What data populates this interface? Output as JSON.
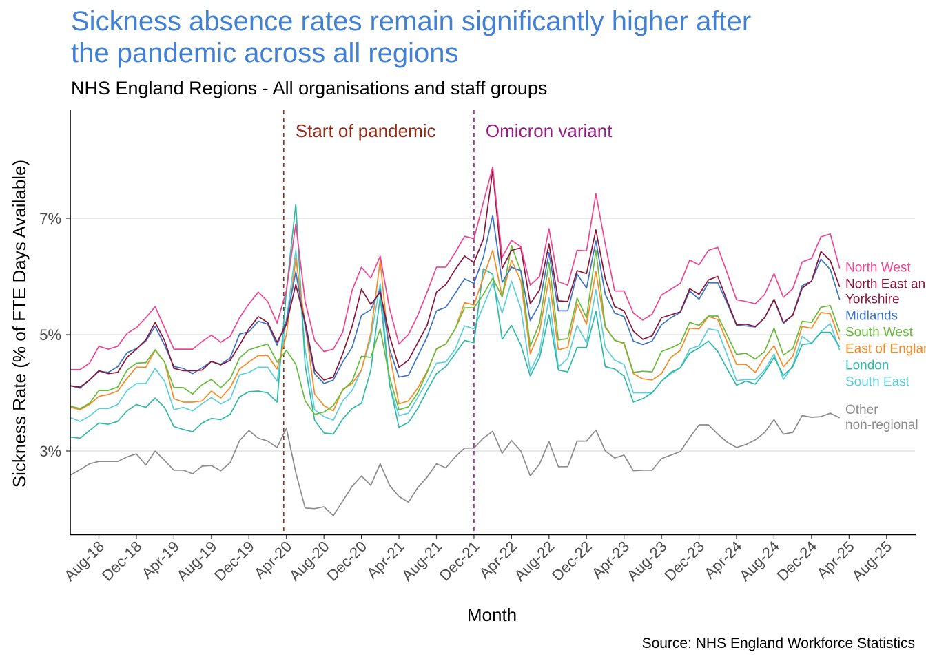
{
  "chart_data": {
    "type": "line",
    "title": "Sickness absence rates remain significantly higher after the pandemic across all regions",
    "subtitle": "NHS England Regions - All organisations and staff groups",
    "xlabel": "Month",
    "ylabel": "Sickness Rate (% of FTE Days Available)",
    "caption": "Source: NHS England Workforce Statistics",
    "title_color": "#4180D2",
    "ylim": [
      1.57,
      8.86
    ],
    "xlim": [
      "2018-05",
      "2025-11"
    ],
    "grid": "horizontal major lines",
    "y_ticks": [
      {
        "value": 3,
        "label": "3%"
      },
      {
        "value": 5,
        "label": "5%"
      },
      {
        "value": 7,
        "label": "7%"
      }
    ],
    "x_ticks": [
      {
        "date": "2018-08",
        "label": "Aug-18"
      },
      {
        "date": "2018-12",
        "label": "Dec-18"
      },
      {
        "date": "2019-04",
        "label": "Apr-19"
      },
      {
        "date": "2019-08",
        "label": "Aug-19"
      },
      {
        "date": "2019-12",
        "label": "Dec-19"
      },
      {
        "date": "2020-04",
        "label": "Apr-20"
      },
      {
        "date": "2020-08",
        "label": "Aug-20"
      },
      {
        "date": "2020-12",
        "label": "Dec-20"
      },
      {
        "date": "2021-04",
        "label": "Apr-21"
      },
      {
        "date": "2021-08",
        "label": "Aug-21"
      },
      {
        "date": "2021-12",
        "label": "Dec-21"
      },
      {
        "date": "2022-04",
        "label": "Apr-22"
      },
      {
        "date": "2022-08",
        "label": "Aug-22"
      },
      {
        "date": "2022-12",
        "label": "Dec-22"
      },
      {
        "date": "2023-04",
        "label": "Apr-23"
      },
      {
        "date": "2023-08",
        "label": "Aug-23"
      },
      {
        "date": "2023-12",
        "label": "Dec-23"
      },
      {
        "date": "2024-04",
        "label": "Apr-24"
      },
      {
        "date": "2024-08",
        "label": "Aug-24"
      },
      {
        "date": "2024-12",
        "label": "Dec-24"
      },
      {
        "date": "2025-04",
        "label": "Apr-25"
      },
      {
        "date": "2025-08",
        "label": "Aug-25"
      }
    ],
    "annotations": [
      {
        "label": "Start of pandemic",
        "date": "2020-03-23",
        "color": "#952B17",
        "style": "dashed vertical line"
      },
      {
        "label": "Omicron variant",
        "date": "2021-12-01",
        "color": "#9A1A86",
        "style": "dashed vertical line"
      }
    ],
    "x": [
      "2018-05",
      "2018-06",
      "2018-07",
      "2018-08",
      "2018-09",
      "2018-10",
      "2018-11",
      "2018-12",
      "2019-01",
      "2019-02",
      "2019-03",
      "2019-04",
      "2019-05",
      "2019-06",
      "2019-07",
      "2019-08",
      "2019-09",
      "2019-10",
      "2019-11",
      "2019-12",
      "2020-01",
      "2020-02",
      "2020-03",
      "2020-04",
      "2020-05",
      "2020-06",
      "2020-07",
      "2020-08",
      "2020-09",
      "2020-10",
      "2020-11",
      "2020-12",
      "2021-01",
      "2021-02",
      "2021-03",
      "2021-04",
      "2021-05",
      "2021-06",
      "2021-07",
      "2021-08",
      "2021-09",
      "2021-10",
      "2021-11",
      "2021-12",
      "2022-01",
      "2022-02",
      "2022-03",
      "2022-04",
      "2022-05",
      "2022-06",
      "2022-07",
      "2022-08",
      "2022-09",
      "2022-10",
      "2022-11",
      "2022-12",
      "2023-01",
      "2023-02",
      "2023-03",
      "2023-04",
      "2023-05",
      "2023-06",
      "2023-07",
      "2023-08",
      "2023-09",
      "2023-10",
      "2023-11",
      "2023-12",
      "2024-01",
      "2024-02",
      "2024-03",
      "2024-04",
      "2024-05",
      "2024-06",
      "2024-07",
      "2024-08",
      "2024-09",
      "2024-10",
      "2024-11",
      "2024-12",
      "2025-01",
      "2025-02",
      "2025-03"
    ],
    "series": [
      {
        "name": "North West",
        "color": "#EE4591",
        "values": [
          4.4,
          4.4,
          4.51,
          4.8,
          4.75,
          4.8,
          5.02,
          5.12,
          5.29,
          5.48,
          5.12,
          4.75,
          4.75,
          4.75,
          4.88,
          4.99,
          4.87,
          4.97,
          5.29,
          5.53,
          5.73,
          5.57,
          5.2,
          5.76,
          6.9,
          5.57,
          4.9,
          4.71,
          4.75,
          5.04,
          5.76,
          6.16,
          5.97,
          6.35,
          5.45,
          4.84,
          5.0,
          5.33,
          5.73,
          6.16,
          6.16,
          6.41,
          6.69,
          6.65,
          7.27,
          7.88,
          6.33,
          6.62,
          6.51,
          5.85,
          6.0,
          6.82,
          5.91,
          5.85,
          6.45,
          6.44,
          7.42,
          6.55,
          5.75,
          5.75,
          5.37,
          5.25,
          5.35,
          5.68,
          5.78,
          5.88,
          6.28,
          6.2,
          6.45,
          6.5,
          6.06,
          5.6,
          5.57,
          5.53,
          5.69,
          6.05,
          5.64,
          5.79,
          6.25,
          6.31,
          6.68,
          6.73,
          6.14
        ]
      },
      {
        "name": "North East and Yorkshire",
        "color": "#8A1538",
        "values": [
          4.12,
          4.1,
          4.22,
          4.38,
          4.33,
          4.35,
          4.61,
          4.75,
          4.91,
          5.21,
          4.9,
          4.42,
          4.38,
          4.38,
          4.39,
          4.54,
          4.48,
          4.56,
          4.82,
          5.1,
          5.31,
          5.21,
          4.87,
          5.18,
          5.86,
          5.22,
          4.39,
          4.22,
          4.27,
          4.67,
          5.14,
          5.78,
          5.52,
          5.73,
          4.98,
          4.44,
          4.56,
          4.86,
          5.16,
          5.73,
          5.86,
          6.12,
          6.35,
          6.24,
          6.64,
          7.82,
          6.14,
          6.45,
          6.49,
          5.53,
          5.77,
          6.56,
          5.58,
          5.57,
          6.1,
          6.05,
          6.8,
          5.96,
          5.48,
          5.41,
          5.06,
          4.92,
          4.98,
          5.29,
          5.34,
          5.39,
          5.79,
          5.69,
          5.94,
          6.0,
          5.58,
          5.17,
          5.18,
          5.14,
          5.29,
          5.61,
          5.21,
          5.33,
          5.8,
          5.92,
          6.43,
          6.27,
          5.82
        ]
      },
      {
        "name": "Midlands",
        "color": "#3B74C6",
        "values": [
          4.12,
          4.08,
          4.22,
          4.37,
          4.35,
          4.45,
          4.69,
          4.76,
          4.89,
          5.14,
          4.82,
          4.45,
          4.42,
          4.33,
          4.43,
          4.54,
          4.49,
          4.6,
          5.01,
          5.05,
          5.23,
          5.18,
          4.82,
          5.24,
          6.08,
          5.14,
          4.33,
          4.16,
          4.22,
          4.53,
          4.78,
          5.33,
          5.43,
          5.78,
          4.75,
          4.27,
          4.3,
          4.63,
          4.96,
          5.41,
          5.47,
          5.71,
          5.96,
          5.88,
          6.33,
          7.05,
          5.9,
          6.16,
          6.1,
          5.24,
          5.53,
          6.41,
          5.41,
          5.41,
          6.04,
          5.8,
          6.61,
          5.69,
          5.37,
          5.31,
          4.89,
          4.83,
          4.89,
          5.17,
          5.29,
          5.38,
          5.75,
          5.61,
          5.89,
          5.89,
          5.54,
          5.16,
          5.15,
          5.13,
          5.29,
          5.6,
          5.19,
          5.34,
          5.84,
          5.92,
          6.3,
          6.12,
          5.6
        ]
      },
      {
        "name": "South West",
        "color": "#67BC3C",
        "values": [
          3.77,
          3.73,
          3.82,
          4.04,
          4.04,
          4.1,
          4.39,
          4.51,
          4.52,
          4.74,
          4.53,
          4.09,
          4.09,
          3.98,
          4.14,
          4.23,
          4.09,
          4.24,
          4.6,
          4.74,
          4.79,
          4.84,
          4.53,
          4.73,
          4.49,
          3.86,
          3.63,
          3.67,
          3.78,
          4.04,
          4.2,
          4.63,
          4.61,
          5.1,
          4.27,
          3.71,
          3.76,
          4.0,
          4.35,
          4.76,
          4.84,
          5.1,
          5.46,
          5.46,
          5.69,
          5.97,
          5.65,
          6.53,
          6.08,
          4.8,
          5.2,
          6.24,
          4.91,
          4.93,
          5.63,
          5.29,
          6.45,
          5.14,
          4.9,
          4.86,
          4.35,
          4.37,
          4.36,
          4.71,
          4.77,
          4.85,
          5.21,
          5.16,
          5.32,
          5.32,
          4.99,
          4.66,
          4.68,
          4.58,
          4.71,
          5.11,
          4.65,
          4.76,
          5.23,
          5.21,
          5.47,
          5.5,
          5.05
        ]
      },
      {
        "name": "East of England",
        "color": "#F68B26",
        "values": [
          3.75,
          3.71,
          3.8,
          3.94,
          3.97,
          4.03,
          4.25,
          4.44,
          4.44,
          4.73,
          4.53,
          3.9,
          3.84,
          3.84,
          3.86,
          4.03,
          3.91,
          4.09,
          4.41,
          4.53,
          4.64,
          4.64,
          4.41,
          5.0,
          6.31,
          5.18,
          3.98,
          3.78,
          3.69,
          4.06,
          4.16,
          4.39,
          5.02,
          6.27,
          4.67,
          3.81,
          3.86,
          4.08,
          4.37,
          4.75,
          4.84,
          5.1,
          5.55,
          5.51,
          5.98,
          6.45,
          5.65,
          6.28,
          5.92,
          4.67,
          5.06,
          5.97,
          4.74,
          4.78,
          5.53,
          5.18,
          6.08,
          5.12,
          4.91,
          4.84,
          4.33,
          4.24,
          4.22,
          4.33,
          4.61,
          4.73,
          5.11,
          5.1,
          5.31,
          5.26,
          4.87,
          4.49,
          4.49,
          4.35,
          4.61,
          4.81,
          4.45,
          4.63,
          5.14,
          5.11,
          5.38,
          5.36,
          4.91
        ]
      },
      {
        "name": "London",
        "color": "#30B9A5",
        "values": [
          3.24,
          3.22,
          3.35,
          3.48,
          3.46,
          3.51,
          3.69,
          3.8,
          3.75,
          3.91,
          3.75,
          3.42,
          3.37,
          3.33,
          3.48,
          3.56,
          3.54,
          3.63,
          3.93,
          4.02,
          4.03,
          4.0,
          3.84,
          5.76,
          7.24,
          4.47,
          3.53,
          3.31,
          3.29,
          3.55,
          3.73,
          3.82,
          4.39,
          5.65,
          4.16,
          3.41,
          3.49,
          3.73,
          4.04,
          4.33,
          4.45,
          4.67,
          4.9,
          4.86,
          6.13,
          6.04,
          4.92,
          5.16,
          4.82,
          4.29,
          4.61,
          5.34,
          4.39,
          4.36,
          4.78,
          4.78,
          5.4,
          4.45,
          4.41,
          4.29,
          3.84,
          3.9,
          4.0,
          4.2,
          4.35,
          4.43,
          4.68,
          4.77,
          4.89,
          4.71,
          4.41,
          4.13,
          4.2,
          4.15,
          4.35,
          4.61,
          4.3,
          4.45,
          4.83,
          4.85,
          5.04,
          5.04,
          4.79
        ]
      },
      {
        "name": "South East",
        "color": "#5BCFDC",
        "values": [
          3.57,
          3.51,
          3.6,
          3.73,
          3.73,
          3.8,
          4.04,
          4.16,
          4.16,
          4.42,
          4.2,
          3.71,
          3.75,
          3.69,
          3.81,
          3.92,
          3.81,
          3.89,
          4.31,
          4.35,
          4.44,
          4.44,
          4.2,
          5.25,
          6.45,
          4.75,
          3.71,
          3.59,
          3.53,
          3.86,
          4.04,
          4.39,
          4.94,
          5.88,
          4.12,
          3.61,
          3.65,
          3.92,
          4.2,
          4.51,
          4.53,
          4.75,
          5.15,
          5.1,
          5.49,
          5.88,
          5.37,
          5.92,
          5.45,
          4.37,
          4.71,
          5.63,
          4.44,
          4.59,
          5.16,
          4.86,
          5.77,
          4.78,
          4.56,
          4.49,
          4.0,
          4.0,
          4.0,
          4.2,
          4.33,
          4.43,
          4.75,
          4.81,
          5.1,
          5.07,
          4.65,
          4.21,
          4.23,
          4.23,
          4.39,
          4.67,
          4.23,
          4.47,
          4.97,
          4.85,
          5.05,
          5.19,
          4.73
        ]
      },
      {
        "name": "Other non-regional",
        "color": "#8C8C8C",
        "values": [
          2.59,
          2.68,
          2.78,
          2.82,
          2.82,
          2.82,
          2.9,
          2.95,
          2.76,
          3.0,
          2.84,
          2.67,
          2.67,
          2.61,
          2.74,
          2.75,
          2.66,
          2.8,
          3.18,
          3.35,
          3.22,
          3.17,
          3.06,
          3.39,
          2.63,
          2.02,
          2.01,
          2.04,
          1.89,
          2.14,
          2.39,
          2.57,
          2.41,
          2.78,
          2.41,
          2.22,
          2.12,
          2.37,
          2.55,
          2.78,
          2.71,
          2.9,
          3.05,
          3.05,
          3.22,
          3.34,
          2.96,
          3.18,
          3.0,
          2.57,
          2.78,
          3.16,
          2.73,
          2.73,
          3.17,
          3.17,
          3.36,
          3.0,
          2.88,
          2.93,
          2.66,
          2.67,
          2.67,
          2.87,
          2.93,
          2.99,
          3.23,
          3.45,
          3.45,
          3.29,
          3.15,
          3.06,
          3.11,
          3.19,
          3.32,
          3.54,
          3.29,
          3.32,
          3.61,
          3.58,
          3.59,
          3.65,
          3.57
        ]
      }
    ]
  }
}
